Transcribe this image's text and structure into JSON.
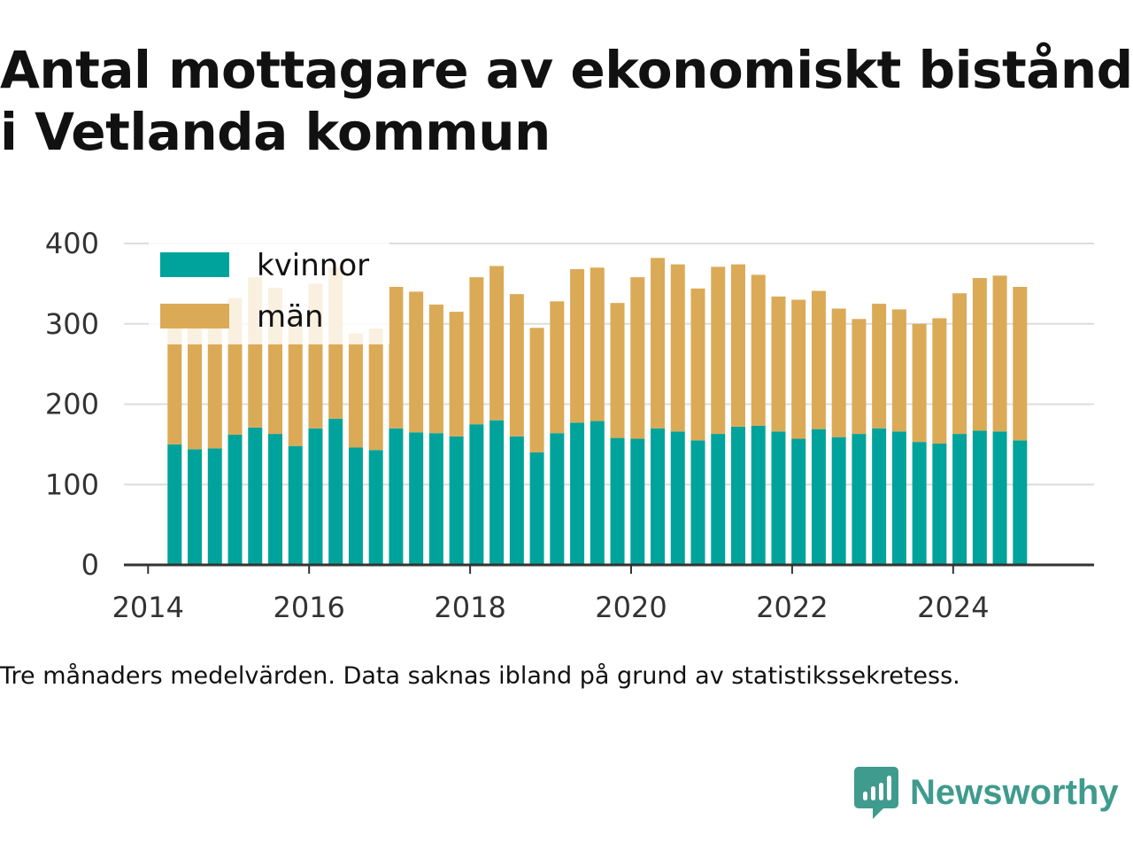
{
  "title_line1": "Antal mottagare av ekonomiskt bistånd",
  "title_line2": "i Vetlanda kommun",
  "note": "Tre månaders medelvärden. Data saknas ibland på grund av statistikssekretess.",
  "brand": {
    "name": "Newsworthy",
    "icon": "newsworthy-logo-icon",
    "color": "#3f9b8e"
  },
  "colors": {
    "kvinnor": "#00a39b",
    "man": "#dbaa56",
    "grid": "#dddddd",
    "axis": "#333333"
  },
  "chart_data": {
    "type": "bar",
    "stacked": true,
    "x_unit": "year",
    "x": [
      2014.33,
      2014.58,
      2014.83,
      2015.08,
      2015.33,
      2015.58,
      2015.83,
      2016.08,
      2016.33,
      2016.58,
      2016.83,
      2017.08,
      2017.33,
      2017.58,
      2017.83,
      2018.08,
      2018.33,
      2018.58,
      2018.83,
      2019.08,
      2019.33,
      2019.58,
      2019.83,
      2020.08,
      2020.33,
      2020.58,
      2020.83,
      2021.08,
      2021.33,
      2021.58,
      2021.83,
      2022.08,
      2022.33,
      2022.58,
      2022.83,
      2023.08,
      2023.33,
      2023.58,
      2023.83,
      2024.08,
      2024.33,
      2024.58,
      2024.83
    ],
    "series": [
      {
        "name": "kvinnor",
        "color": "#00a39b",
        "values": [
          150,
          144,
          145,
          162,
          171,
          163,
          148,
          170,
          182,
          146,
          143,
          170,
          165,
          164,
          160,
          175,
          180,
          160,
          140,
          164,
          177,
          179,
          158,
          157,
          170,
          166,
          155,
          163,
          172,
          173,
          166,
          157,
          169,
          159,
          163,
          170,
          166,
          153,
          151,
          163,
          167,
          166,
          155
        ]
      },
      {
        "name": "män",
        "color": "#dbaa56",
        "values": [
          148,
          165,
          163,
          170,
          187,
          182,
          165,
          180,
          188,
          142,
          151,
          176,
          175,
          160,
          155,
          183,
          192,
          177,
          155,
          164,
          191,
          191,
          168,
          201,
          212,
          208,
          189,
          208,
          202,
          188,
          168,
          173,
          172,
          160,
          143,
          155,
          152,
          147,
          156,
          175,
          190,
          194,
          191
        ]
      }
    ],
    "xticks": [
      2014,
      2016,
      2018,
      2020,
      2022,
      2024
    ],
    "xtick_labels": [
      "2014",
      "2016",
      "2018",
      "2020",
      "2022",
      "2024"
    ],
    "yticks": [
      0,
      100,
      200,
      300,
      400
    ],
    "ytick_labels": [
      "0",
      "100",
      "200",
      "300",
      "400"
    ],
    "xlim": [
      2013.7,
      2025.75
    ],
    "ylim": [
      0,
      400
    ],
    "grid": true,
    "legend": {
      "position": "top-left",
      "entries": [
        "kvinnor",
        "män"
      ]
    }
  }
}
